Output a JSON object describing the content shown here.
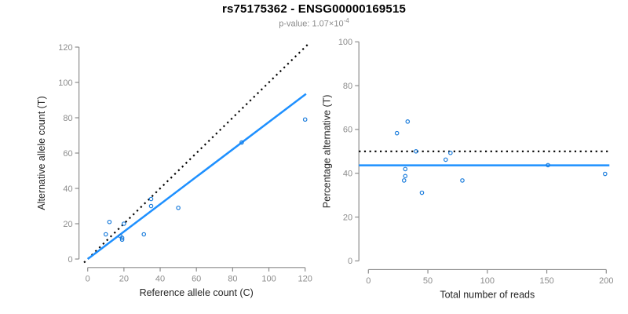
{
  "header": {
    "title": "rs75175362 - ENSG00000169515",
    "subtitle": {
      "prefix": "p-value: ",
      "mantissa": "1.07",
      "times": "×",
      "base": "10",
      "exponent": "-4"
    }
  },
  "colors": {
    "title": "#000000",
    "subtitle": "#8c8c8c",
    "axis": "#8c8c8c",
    "tick_label": "#8c8c8c",
    "axis_title": "#262626",
    "points": "#1c7ddc",
    "fit_line": "#1e90ff",
    "reference_line": "#000000"
  },
  "chart_data": [
    {
      "id": "allele-counts",
      "type": "scatter",
      "title": "",
      "xlabel": "Reference allele count (C)",
      "ylabel": "Alternative allele count (T)",
      "xlim": [
        0,
        120
      ],
      "ylim": [
        0,
        120
      ],
      "xticks": [
        0,
        20,
        40,
        60,
        80,
        100,
        120
      ],
      "yticks": [
        0,
        20,
        40,
        60,
        80,
        100,
        120
      ],
      "grid": false,
      "points": [
        [
          10,
          14
        ],
        [
          12,
          21
        ],
        [
          18,
          13
        ],
        [
          19,
          12
        ],
        [
          19,
          11
        ],
        [
          20,
          20
        ],
        [
          31,
          14
        ],
        [
          35,
          34
        ],
        [
          35,
          30
        ],
        [
          50,
          29
        ],
        [
          85,
          66
        ],
        [
          120,
          79
        ]
      ],
      "lines": [
        {
          "name": "identity-line",
          "style": "dotted",
          "color_key": "reference_line",
          "width": 2.2,
          "x1": -2,
          "y1": -2,
          "x2": 122,
          "y2": 122
        },
        {
          "name": "regression-line",
          "style": "solid",
          "color_key": "fit_line",
          "width": 2.5,
          "x1": 0,
          "y1": 0,
          "x2": 120.5,
          "y2": 93.5
        }
      ]
    },
    {
      "id": "percentage-alternative",
      "type": "scatter",
      "title": "",
      "xlabel": "Total number of reads",
      "ylabel": "Percentage alternative (T)",
      "xlim": [
        0,
        200
      ],
      "ylim": [
        0,
        100
      ],
      "xticks": [
        0,
        50,
        100,
        150,
        200
      ],
      "yticks": [
        0,
        20,
        40,
        60,
        80,
        100
      ],
      "grid": false,
      "points": [
        [
          24,
          58.3
        ],
        [
          33,
          63.6
        ],
        [
          31,
          41.9
        ],
        [
          31,
          38.7
        ],
        [
          30,
          36.7
        ],
        [
          40,
          50.0
        ],
        [
          45,
          31.1
        ],
        [
          69,
          49.3
        ],
        [
          65,
          46.2
        ],
        [
          79,
          36.7
        ],
        [
          151,
          43.7
        ],
        [
          199,
          39.7
        ]
      ],
      "lines": [
        {
          "name": "null-line",
          "style": "dotted",
          "color_key": "reference_line",
          "width": 2.2,
          "hline": 50
        },
        {
          "name": "mean-line",
          "style": "solid",
          "color_key": "fit_line",
          "width": 2.5,
          "hline": 43.6
        }
      ]
    }
  ]
}
